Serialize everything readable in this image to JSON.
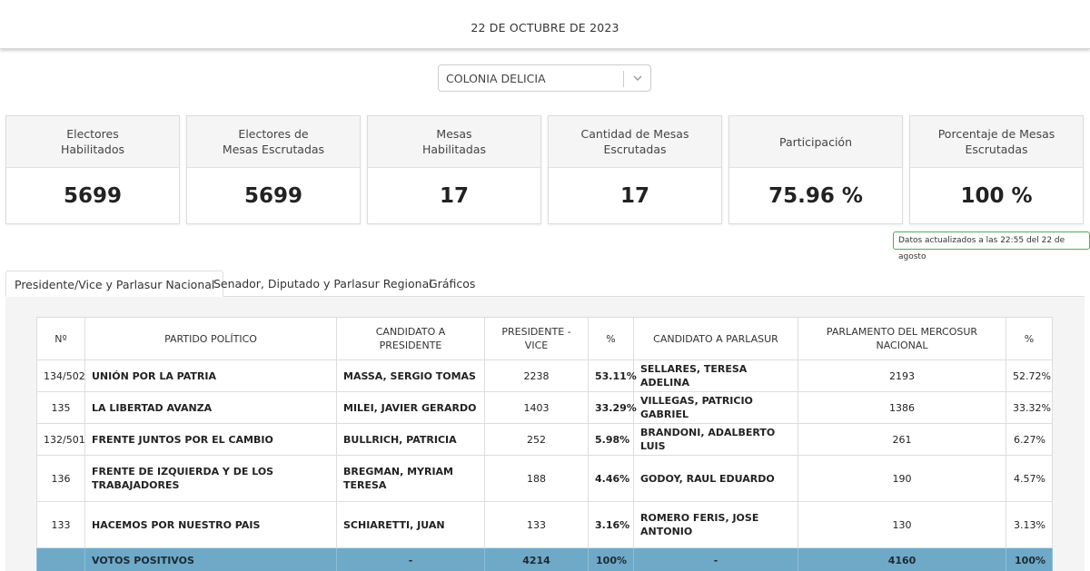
{
  "header": {
    "date": "22 DE OCTUBRE DE 2023"
  },
  "location_select": {
    "value": "COLONIA DELICIA",
    "icon": "chevron-down-icon"
  },
  "stats": [
    {
      "label": "Electores\nHabilitados",
      "value": "5699"
    },
    {
      "label": "Electores de\nMesas Escrutadas",
      "value": "5699"
    },
    {
      "label": "Mesas\nHabilitadas",
      "value": "17"
    },
    {
      "label": "Cantidad de Mesas Escrutadas",
      "value": "17"
    },
    {
      "label": "Participación",
      "value": "75.96 %"
    },
    {
      "label": "Porcentaje de Mesas Escrutadas",
      "value": "100 %"
    }
  ],
  "updated_badge": "Datos actualizados a las 22:55 del 22 de agosto",
  "tabs": [
    {
      "label": "Presidente/Vice y Parlasur Nacional",
      "active": true
    },
    {
      "label": "Senador, Diputado y Parlasur Regional",
      "active": false
    },
    {
      "label": "Gráficos",
      "active": false
    }
  ],
  "table": {
    "headers": [
      "Nº",
      "PARTIDO POLÍTICO",
      "CANDIDATO A PRESIDENTE",
      "PRESIDENTE - VICE",
      "%",
      "CANDIDATO A PARLASUR",
      "PARLAMENTO DEL MERCOSUR NACIONAL",
      "%"
    ],
    "rows": [
      {
        "num": "134/502",
        "party": "UNIÓN POR LA PATRIA",
        "color": "#4a8fd6",
        "presidente": "MASSA, SERGIO TOMAS",
        "votes": "2238",
        "pct": "53.11%",
        "parlasur": "SELLARES, TERESA ADELINA",
        "parl_votes": "2193",
        "parl_pct": "52.72%"
      },
      {
        "num": "135",
        "party": "LA LIBERTAD AVANZA",
        "color": "#9b59c4",
        "presidente": "MILEI, JAVIER GERARDO",
        "votes": "1403",
        "pct": "33.29%",
        "parlasur": "VILLEGAS, PATRICIO GABRIEL",
        "parl_votes": "1386",
        "parl_pct": "33.32%"
      },
      {
        "num": "132/501",
        "party": "FRENTE JUNTOS POR EL CAMBIO",
        "color": "#f4d823",
        "presidente": "BULLRICH, PATRICIA",
        "votes": "252",
        "pct": "5.98%",
        "parlasur": "BRANDONI, ADALBERTO LUIS",
        "parl_votes": "261",
        "parl_pct": "6.27%"
      },
      {
        "num": "136",
        "party": "FRENTE DE IZQUIERDA Y DE LOS TRABAJADORES",
        "color": "#e05c63",
        "presidente": "BREGMAN, MYRIAM TERESA",
        "votes": "188",
        "pct": "4.46%",
        "parlasur": "GODOY, RAUL EDUARDO",
        "parl_votes": "190",
        "parl_pct": "4.57%"
      },
      {
        "num": "133",
        "party": "HACEMOS POR NUESTRO PAIS",
        "color": "#4fc39a",
        "presidente": "SCHIARETTI, JUAN",
        "votes": "133",
        "pct": "3.16%",
        "parlasur": "ROMERO FERIS, JOSE ANTONIO",
        "parl_votes": "130",
        "parl_pct": "3.13%"
      }
    ],
    "total": {
      "label": "VOTOS POSITIVOS",
      "presidente": "-",
      "votes": "4214",
      "pct": "100%",
      "parlasur": "-",
      "parl_votes": "4160",
      "parl_pct": "100%"
    }
  }
}
